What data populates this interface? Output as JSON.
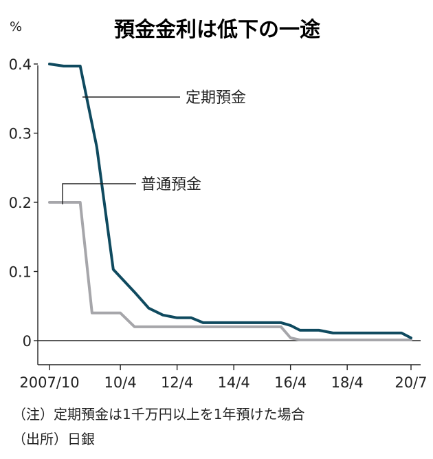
{
  "chart_data": {
    "type": "line",
    "title": "預金金利は低下の一途",
    "ylabel": "%",
    "xlabel": "",
    "ylim": [
      0,
      0.4
    ],
    "y_ticks": [
      0,
      0.1,
      0.2,
      0.3,
      0.4
    ],
    "y_tick_labels": [
      "0",
      "0.1",
      "0.2",
      "0.3",
      "0.4"
    ],
    "x_ticks": [
      "2007-10",
      "2010-04",
      "2012-04",
      "2014-04",
      "2016-04",
      "2018-04",
      "2020-07"
    ],
    "x_tick_labels": [
      "2007/10",
      "10/4",
      "12/4",
      "14/4",
      "16/4",
      "18/4",
      "20/7"
    ],
    "grid": false,
    "series": [
      {
        "name": "定期預金",
        "color": "#0f4a5f",
        "points": [
          {
            "x": "2007-10",
            "y": 0.4
          },
          {
            "x": "2008-04",
            "y": 0.397
          },
          {
            "x": "2008-11",
            "y": 0.397
          },
          {
            "x": "2009-06",
            "y": 0.28
          },
          {
            "x": "2010-01",
            "y": 0.103
          },
          {
            "x": "2010-10",
            "y": 0.07
          },
          {
            "x": "2011-04",
            "y": 0.047
          },
          {
            "x": "2011-10",
            "y": 0.037
          },
          {
            "x": "2012-04",
            "y": 0.033
          },
          {
            "x": "2012-10",
            "y": 0.033
          },
          {
            "x": "2013-03",
            "y": 0.026
          },
          {
            "x": "2015-12",
            "y": 0.026
          },
          {
            "x": "2016-04",
            "y": 0.022
          },
          {
            "x": "2016-08",
            "y": 0.015
          },
          {
            "x": "2017-04",
            "y": 0.015
          },
          {
            "x": "2017-10",
            "y": 0.011
          },
          {
            "x": "2020-03",
            "y": 0.011
          },
          {
            "x": "2020-07",
            "y": 0.004
          }
        ]
      },
      {
        "name": "普通預金",
        "color": "#a6a6aa",
        "points": [
          {
            "x": "2007-10",
            "y": 0.2
          },
          {
            "x": "2008-11",
            "y": 0.2
          },
          {
            "x": "2009-04",
            "y": 0.04
          },
          {
            "x": "2010-04",
            "y": 0.04
          },
          {
            "x": "2010-10",
            "y": 0.02
          },
          {
            "x": "2015-12",
            "y": 0.02
          },
          {
            "x": "2016-04",
            "y": 0.004
          },
          {
            "x": "2016-08",
            "y": 0.001
          },
          {
            "x": "2020-07",
            "y": 0.001
          }
        ]
      }
    ]
  },
  "notes": {
    "line1": "（注）定期預金は1千万円以上を1年預けた場合",
    "line2": "（出所）日銀"
  }
}
